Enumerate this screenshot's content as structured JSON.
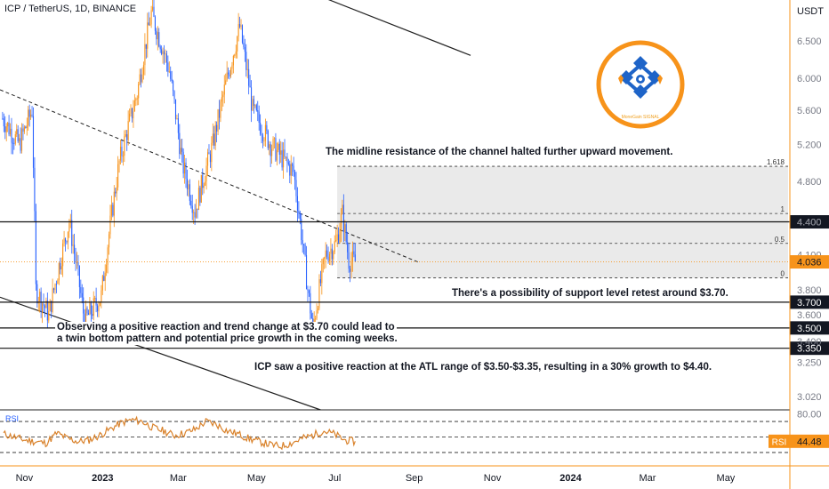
{
  "header": {
    "symbol_title": "ICP / TetherUS, 1D, BINANCE",
    "currency": "USDT"
  },
  "logo": {
    "caption": "MoneGain SIGNAL"
  },
  "annotations": {
    "midline": "The midline resistance of the channel halted further upward movement.",
    "retest": "There's a possibility of support level retest around $3.70.",
    "observe_line1": "Observing a positive reaction and trend change at $3.70 could lead to",
    "observe_line2": "a twin bottom pattern and potential price growth in the coming weeks.",
    "atl": "ICP saw a positive reaction at the ATL range of $3.50-$3.35, resulting in a 30% growth to $4.40."
  },
  "colors": {
    "up": "#f7931a",
    "down": "#2962ff",
    "accent_orange": "#f7931a",
    "logo_blue": "#1e64c8",
    "rsi_line": "#d9822b",
    "fib_fill": "#e6e6e6"
  },
  "chart_data": [
    {
      "type": "candlestick",
      "title": "ICP / TetherUS, 1D, BINANCE",
      "yaxis_scale": "log",
      "ylim": [
        2.95,
        7.1
      ],
      "y_ticks": [
        "6.500",
        "6.000",
        "5.600",
        "5.200",
        "4.800",
        "4.400",
        "4.100",
        "3.800",
        "3.600",
        "3.400",
        "3.250",
        "3.020"
      ],
      "x_ticks": [
        "Nov",
        "2023",
        "Mar",
        "May",
        "Jul",
        "Sep",
        "Nov",
        "2024",
        "Mar",
        "May"
      ],
      "last_price": "4.036",
      "ohlc_samples": [
        {
          "date": "2022-10-15",
          "close": 5.5
        },
        {
          "date": "2022-10-28",
          "close": 5.2
        },
        {
          "date": "2022-11-07",
          "close": 5.6
        },
        {
          "date": "2022-11-10",
          "close": 3.8
        },
        {
          "date": "2022-11-20",
          "close": 3.6
        },
        {
          "date": "2022-12-06",
          "close": 4.4
        },
        {
          "date": "2022-12-18",
          "close": 3.55
        },
        {
          "date": "2022-12-31",
          "close": 3.75
        },
        {
          "date": "2023-01-14",
          "close": 5.0
        },
        {
          "date": "2023-01-28",
          "close": 5.8
        },
        {
          "date": "2023-02-08",
          "close": 6.9
        },
        {
          "date": "2023-02-22",
          "close": 6.1
        },
        {
          "date": "2023-03-04",
          "close": 5.0
        },
        {
          "date": "2023-03-14",
          "close": 4.5
        },
        {
          "date": "2023-03-28",
          "close": 5.2
        },
        {
          "date": "2023-04-18",
          "close": 6.7
        },
        {
          "date": "2023-04-28",
          "close": 5.6
        },
        {
          "date": "2023-05-12",
          "close": 5.2
        },
        {
          "date": "2023-05-30",
          "close": 4.9
        },
        {
          "date": "2023-06-10",
          "close": 3.8
        },
        {
          "date": "2023-06-14",
          "close": 3.5
        },
        {
          "date": "2023-06-24",
          "close": 4.1
        },
        {
          "date": "2023-07-02",
          "close": 4.2
        },
        {
          "date": "2023-07-07",
          "close": 4.48
        },
        {
          "date": "2023-07-12",
          "close": 4.05
        },
        {
          "date": "2023-07-17",
          "close": 4.036
        }
      ],
      "horizontal_levels": [
        {
          "label": "4.400",
          "value": 4.4
        },
        {
          "label": "3.700",
          "value": 3.7
        },
        {
          "label": "3.500",
          "value": 3.5
        },
        {
          "label": "3.350",
          "value": 3.35
        }
      ],
      "fibonacci": [
        {
          "label": "1.618",
          "value": 4.96
        },
        {
          "label": "1",
          "value": 4.48
        },
        {
          "label": "0.5",
          "value": 4.2
        },
        {
          "label": "0",
          "value": 3.9
        }
      ]
    },
    {
      "type": "line",
      "series": [
        {
          "name": "RSI",
          "values": [
            54,
            50,
            46,
            44,
            42,
            55,
            48,
            44,
            46,
            52,
            60,
            68,
            72,
            70,
            62,
            58,
            52,
            55,
            60,
            70,
            66,
            58,
            54,
            48,
            44,
            40,
            38,
            42,
            48,
            52,
            58,
            54,
            46,
            44
          ]
        }
      ],
      "last_value": "44.48",
      "ylim": [
        15,
        85
      ],
      "y_ticks": [
        "80.00"
      ]
    }
  ]
}
